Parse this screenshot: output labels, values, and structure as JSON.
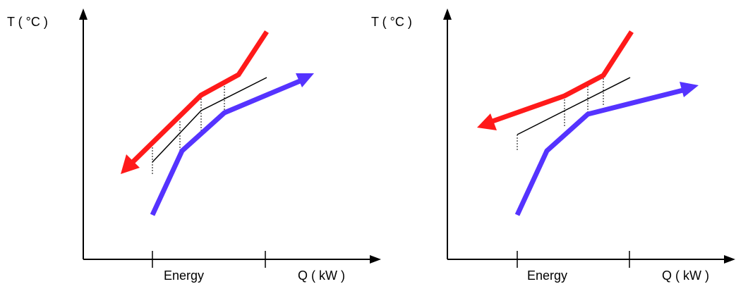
{
  "colors": {
    "hot_stream": "#ff1a1a",
    "cold_stream": "#5533ff",
    "axes": "#000000",
    "guide_lines": "#000000"
  },
  "panels": [
    {
      "y_axis_label": "T ( °C )",
      "x_axis_label": "Q ( kW )",
      "energy_label": "Energy",
      "hot_stream_direction": "toward-lower-left",
      "cold_stream_direction": "toward-upper-right"
    },
    {
      "y_axis_label": "T ( °C )",
      "x_axis_label": "Q ( kW )",
      "energy_label": "Energy",
      "hot_stream_direction": "toward-left",
      "cold_stream_direction": "toward-upper-right"
    }
  ]
}
